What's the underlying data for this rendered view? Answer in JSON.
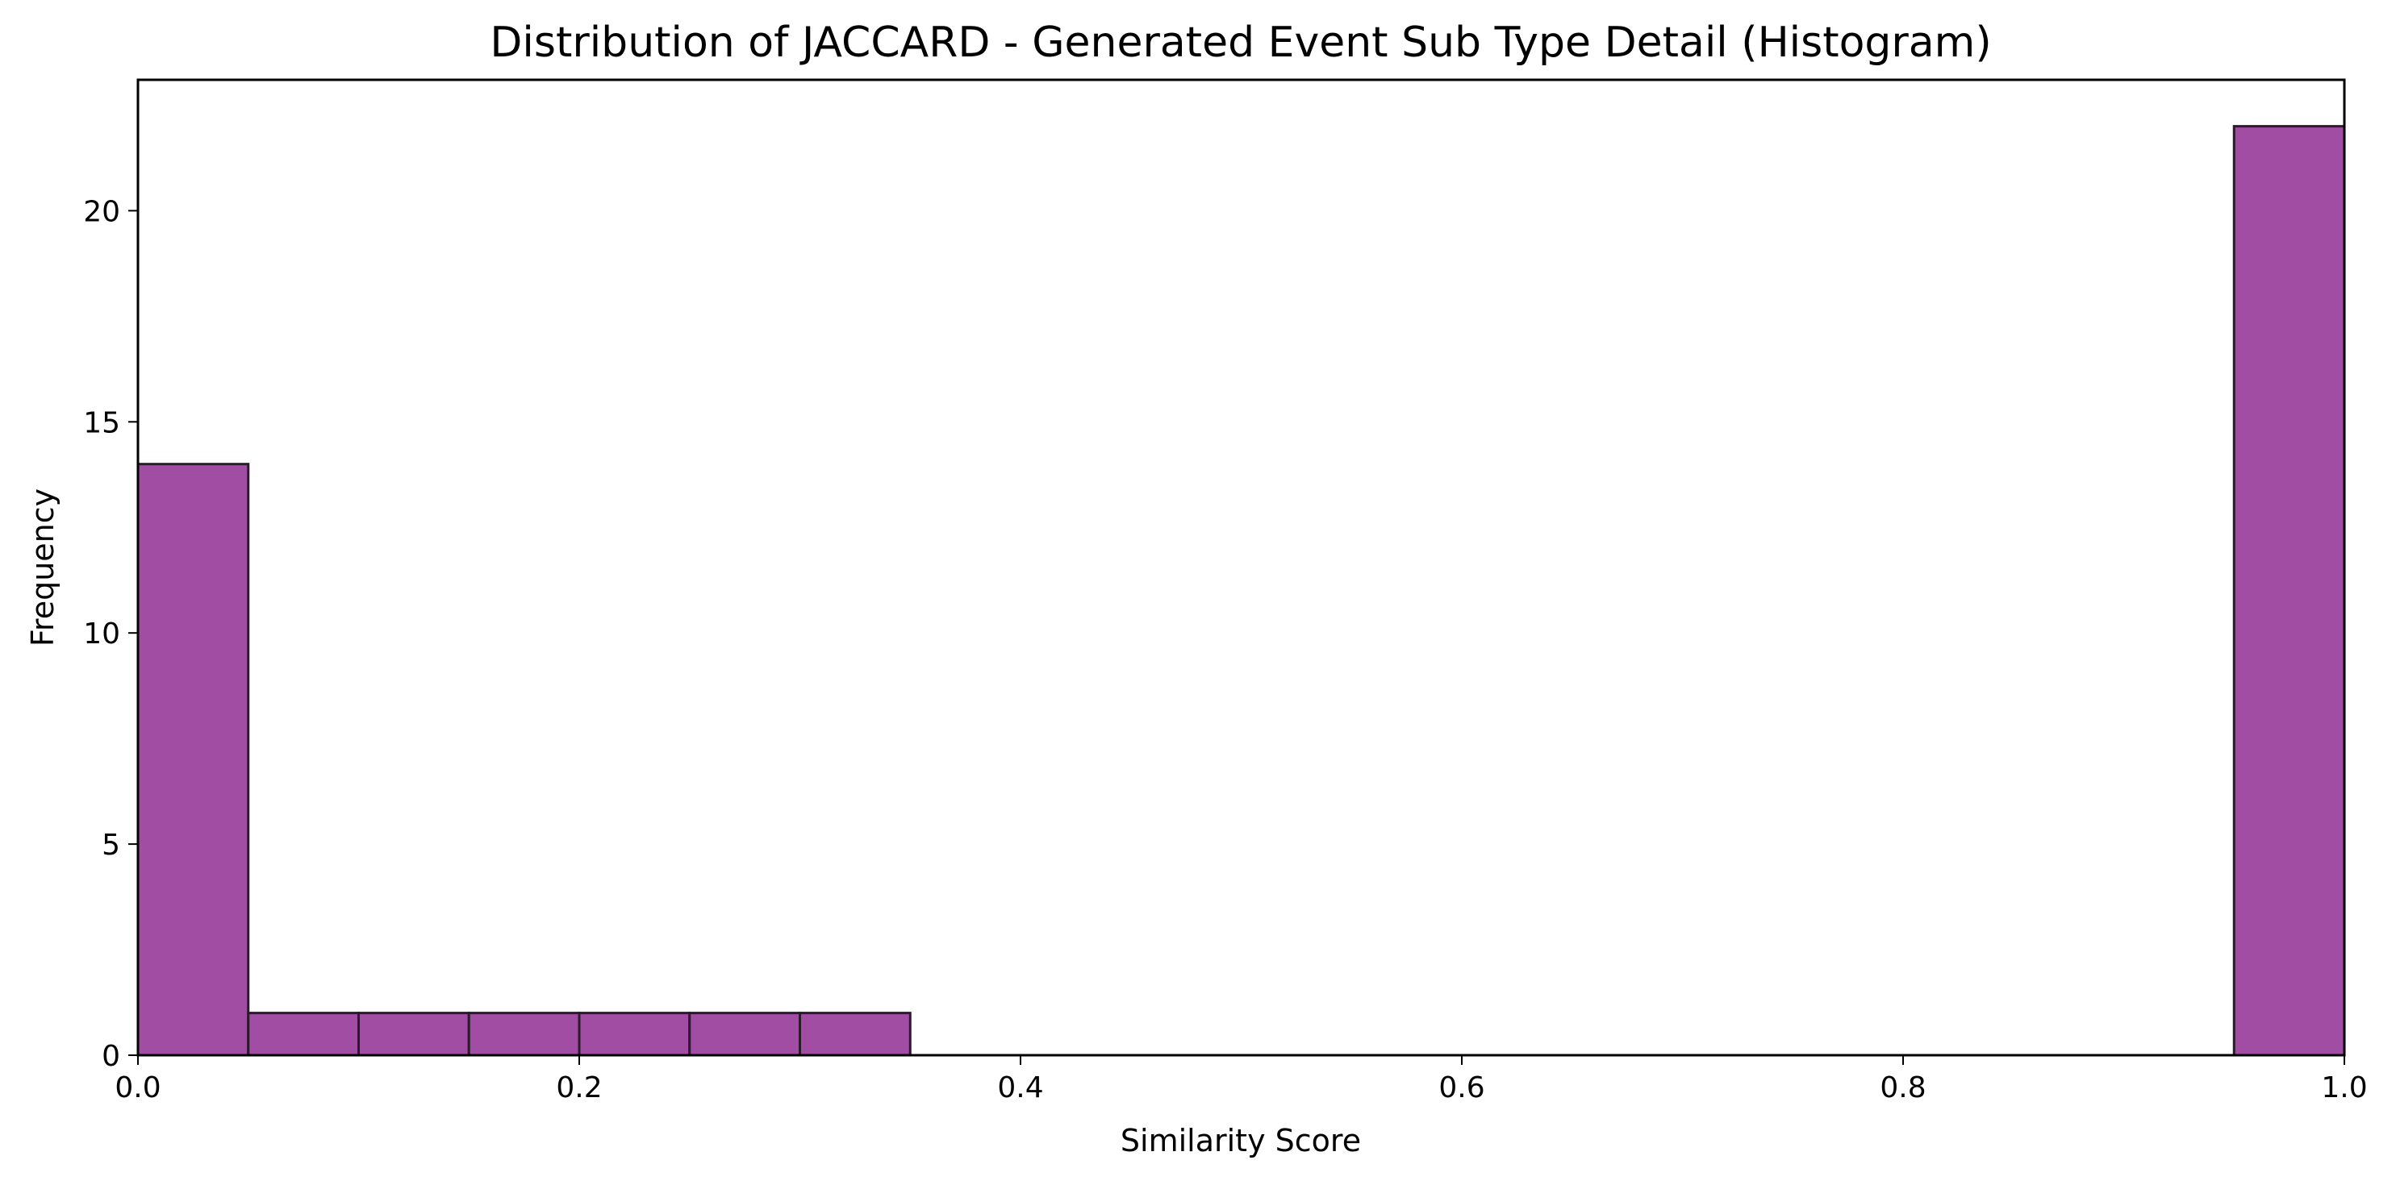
{
  "chart_data": {
    "type": "bar",
    "title": "Distribution of JACCARD - Generated Event Sub Type Detail (Histogram)",
    "xlabel": "Similarity Score",
    "ylabel": "Frequency",
    "xlim": [
      0,
      1
    ],
    "ylim": [
      0,
      23.1
    ],
    "xticks": [
      "0.0",
      "0.2",
      "0.4",
      "0.6",
      "0.8",
      "1.0"
    ],
    "yticks": [
      "0",
      "5",
      "10",
      "15",
      "20"
    ],
    "bin_edges": [
      0.0,
      0.05,
      0.1,
      0.15,
      0.2,
      0.25,
      0.3,
      0.35,
      0.4,
      0.45,
      0.5,
      0.55,
      0.6,
      0.65,
      0.7,
      0.75,
      0.8,
      0.85,
      0.9,
      0.95,
      1.0
    ],
    "values": [
      14,
      1,
      1,
      1,
      1,
      1,
      1,
      0,
      0,
      0,
      0,
      0,
      0,
      0,
      0,
      0,
      0,
      0,
      0,
      22
    ],
    "bar_color": "#a24da4",
    "edge_color": "#2b1a2b",
    "grid": false,
    "legend": "none"
  }
}
